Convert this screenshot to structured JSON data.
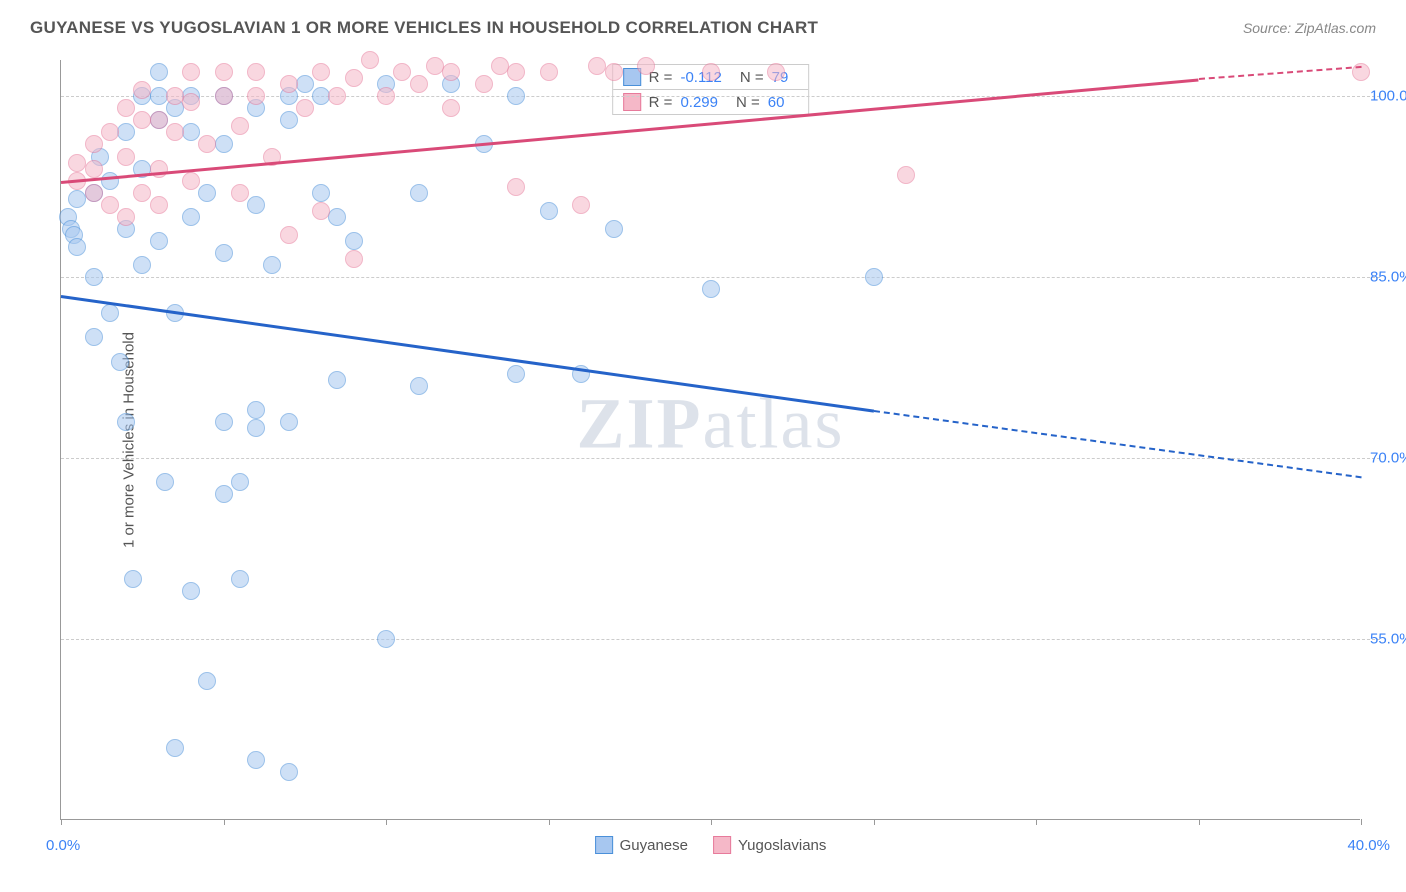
{
  "title": "GUYANESE VS YUGOSLAVIAN 1 OR MORE VEHICLES IN HOUSEHOLD CORRELATION CHART",
  "source": "Source: ZipAtlas.com",
  "y_axis_title": "1 or more Vehicles in Household",
  "watermark_a": "ZIP",
  "watermark_b": "atlas",
  "chart": {
    "type": "scatter-correlation",
    "background_color": "#ffffff",
    "grid_color": "#cccccc",
    "axis_color": "#999999",
    "tick_label_color": "#3b82f6",
    "text_color": "#555555",
    "xlim": [
      0,
      40
    ],
    "ylim": [
      40,
      103
    ],
    "x_ticks": [
      0,
      5,
      10,
      15,
      20,
      25,
      30,
      35,
      40
    ],
    "x_tick_labels": {
      "left": "0.0%",
      "right": "40.0%"
    },
    "y_ticks": [
      55,
      70,
      85,
      100
    ],
    "y_tick_labels": [
      "55.0%",
      "70.0%",
      "85.0%",
      "100.0%"
    ],
    "marker_radius": 9,
    "marker_opacity": 0.55,
    "line_width": 2.5,
    "series": [
      {
        "name": "Guyanese",
        "color_fill": "#a7c7f0",
        "color_stroke": "#4a90d9",
        "line_color": "#2563c9",
        "R": "-0.112",
        "N": "79",
        "trend": {
          "x1": 0,
          "y1": 83.5,
          "x2_solid": 25,
          "y2_solid": 74,
          "x2_dash": 40,
          "y2_dash": 68.5
        },
        "points": [
          [
            0.2,
            90
          ],
          [
            0.3,
            89
          ],
          [
            0.4,
            88.5
          ],
          [
            0.5,
            87.5
          ],
          [
            0.5,
            91.5
          ],
          [
            1,
            92
          ],
          [
            1,
            85
          ],
          [
            1,
            80
          ],
          [
            1.2,
            95
          ],
          [
            1.5,
            93
          ],
          [
            1.5,
            82
          ],
          [
            1.8,
            78
          ],
          [
            2,
            97
          ],
          [
            2,
            89
          ],
          [
            2,
            73
          ],
          [
            2.2,
            60
          ],
          [
            2.5,
            100
          ],
          [
            2.5,
            94
          ],
          [
            2.5,
            86
          ],
          [
            3,
            102
          ],
          [
            3,
            100
          ],
          [
            3,
            98
          ],
          [
            3,
            88
          ],
          [
            3.2,
            68
          ],
          [
            3.5,
            99
          ],
          [
            3.5,
            82
          ],
          [
            3.5,
            46
          ],
          [
            4,
            100
          ],
          [
            4,
            97
          ],
          [
            4,
            90
          ],
          [
            4,
            59
          ],
          [
            4.5,
            92
          ],
          [
            4.5,
            51.5
          ],
          [
            5,
            100
          ],
          [
            5,
            96
          ],
          [
            5,
            87
          ],
          [
            5,
            73
          ],
          [
            5,
            67
          ],
          [
            5.5,
            68
          ],
          [
            5.5,
            60
          ],
          [
            6,
            99
          ],
          [
            6,
            91
          ],
          [
            6,
            74
          ],
          [
            6,
            72.5
          ],
          [
            6,
            45
          ],
          [
            6.5,
            86
          ],
          [
            7,
            100
          ],
          [
            7,
            98
          ],
          [
            7,
            73
          ],
          [
            7,
            44
          ],
          [
            7.5,
            101
          ],
          [
            8,
            100
          ],
          [
            8,
            92
          ],
          [
            8.5,
            90
          ],
          [
            8.5,
            76.5
          ],
          [
            9,
            88
          ],
          [
            10,
            101
          ],
          [
            10,
            55
          ],
          [
            11,
            92
          ],
          [
            11,
            76
          ],
          [
            12,
            101
          ],
          [
            13,
            96
          ],
          [
            14,
            100
          ],
          [
            14,
            77
          ],
          [
            15,
            90.5
          ],
          [
            16,
            77
          ],
          [
            17,
            89
          ],
          [
            20,
            84
          ],
          [
            25,
            85
          ]
        ]
      },
      {
        "name": "Yugoslavians",
        "color_fill": "#f5b8c8",
        "color_stroke": "#e77a9b",
        "line_color": "#d94a78",
        "R": "0.299",
        "N": "60",
        "trend": {
          "x1": 0,
          "y1": 93,
          "x2_solid": 35,
          "y2_solid": 101.5,
          "x2_dash": 40,
          "y2_dash": 102.5
        },
        "points": [
          [
            0.5,
            93
          ],
          [
            0.5,
            94.5
          ],
          [
            1,
            92
          ],
          [
            1,
            94
          ],
          [
            1,
            96
          ],
          [
            1.5,
            91
          ],
          [
            1.5,
            97
          ],
          [
            2,
            90
          ],
          [
            2,
            95
          ],
          [
            2,
            99
          ],
          [
            2.5,
            92
          ],
          [
            2.5,
            98
          ],
          [
            2.5,
            100.5
          ],
          [
            3,
            91
          ],
          [
            3,
            94
          ],
          [
            3,
            98
          ],
          [
            3.5,
            97
          ],
          [
            3.5,
            100
          ],
          [
            4,
            93
          ],
          [
            4,
            99.5
          ],
          [
            4,
            102
          ],
          [
            4.5,
            96
          ],
          [
            5,
            100
          ],
          [
            5,
            102
          ],
          [
            5.5,
            92
          ],
          [
            5.5,
            97.5
          ],
          [
            6,
            100
          ],
          [
            6,
            102
          ],
          [
            6.5,
            95
          ],
          [
            7,
            101
          ],
          [
            7,
            88.5
          ],
          [
            7.5,
            99
          ],
          [
            8,
            102
          ],
          [
            8,
            90.5
          ],
          [
            8.5,
            100
          ],
          [
            9,
            101.5
          ],
          [
            9,
            86.5
          ],
          [
            9.5,
            103
          ],
          [
            10,
            100
          ],
          [
            10.5,
            102
          ],
          [
            11,
            101
          ],
          [
            11.5,
            102.5
          ],
          [
            12,
            99
          ],
          [
            12,
            102
          ],
          [
            13,
            101
          ],
          [
            13.5,
            102.5
          ],
          [
            14,
            102
          ],
          [
            14,
            92.5
          ],
          [
            15,
            102
          ],
          [
            16,
            91
          ],
          [
            16.5,
            102.5
          ],
          [
            17,
            102
          ],
          [
            18,
            102.5
          ],
          [
            20,
            102
          ],
          [
            22,
            102
          ],
          [
            26,
            93.5
          ],
          [
            40,
            102
          ]
        ]
      }
    ],
    "legend_labels": [
      "Guyanese",
      "Yugoslavians"
    ]
  }
}
